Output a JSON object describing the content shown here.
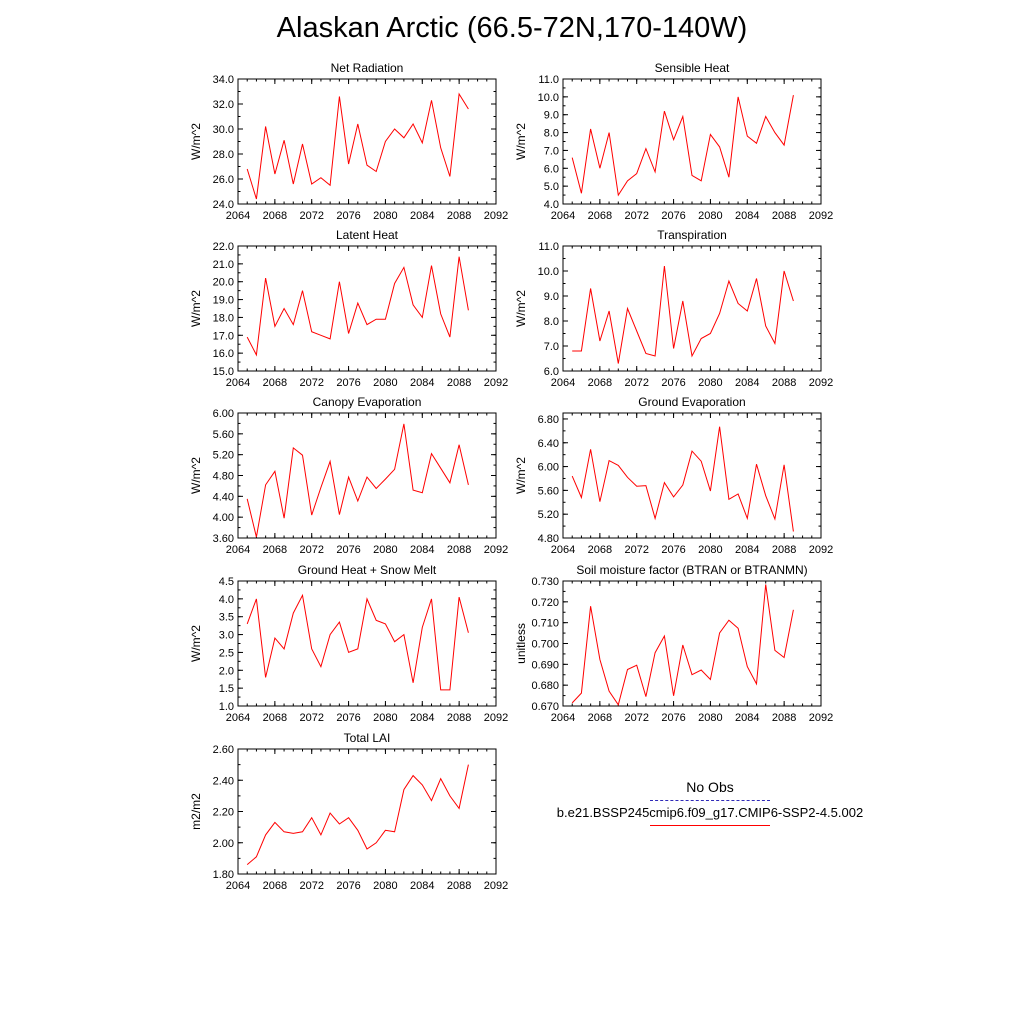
{
  "title": "Alaskan Arctic (66.5-72N,170-140W)",
  "legend": {
    "obs_label": "No Obs",
    "run_label": "b.e21.BSSP245cmip6.f09_g17.CMIP6-SSP2-4.5.002",
    "obs_color": "#2f2ab8",
    "run_color": "#ff0000"
  },
  "chart_data": [
    {
      "type": "line",
      "title": "Net Radiation",
      "ylabel": "W/m^2",
      "xlim": [
        2064,
        2092
      ],
      "ylim": [
        24,
        34
      ],
      "x_ticks": [
        "2064",
        "2068",
        "2072",
        "2076",
        "2080",
        "2084",
        "2088",
        "2092"
      ],
      "y_ticks": [
        "24.0",
        "26.0",
        "28.0",
        "30.0",
        "32.0",
        "34.0"
      ],
      "x": [
        2065,
        2066,
        2067,
        2068,
        2069,
        2070,
        2071,
        2072,
        2073,
        2074,
        2075,
        2076,
        2077,
        2078,
        2079,
        2080,
        2081,
        2082,
        2083,
        2084,
        2085,
        2086,
        2087,
        2088,
        2089
      ],
      "values": [
        26.8,
        24.4,
        30.2,
        26.4,
        29.1,
        25.6,
        28.8,
        25.6,
        26.1,
        25.5,
        32.6,
        27.2,
        30.4,
        27.1,
        26.6,
        29.0,
        30.0,
        29.3,
        30.4,
        28.9,
        32.3,
        28.5,
        26.2,
        32.8,
        31.6
      ]
    },
    {
      "type": "line",
      "title": "Sensible Heat",
      "ylabel": "W/m^2",
      "xlim": [
        2064,
        2092
      ],
      "ylim": [
        4,
        11
      ],
      "x_ticks": [
        "2064",
        "2068",
        "2072",
        "2076",
        "2080",
        "2084",
        "2088",
        "2092"
      ],
      "y_ticks": [
        "4.0",
        "5.0",
        "6.0",
        "7.0",
        "8.0",
        "9.0",
        "10.0",
        "11.0"
      ],
      "x": [
        2065,
        2066,
        2067,
        2068,
        2069,
        2070,
        2071,
        2072,
        2073,
        2074,
        2075,
        2076,
        2077,
        2078,
        2079,
        2080,
        2081,
        2082,
        2083,
        2084,
        2085,
        2086,
        2087,
        2088,
        2089
      ],
      "values": [
        6.6,
        4.6,
        8.2,
        6.0,
        8.0,
        4.5,
        5.3,
        5.7,
        7.1,
        5.8,
        9.2,
        7.6,
        8.9,
        5.6,
        5.3,
        7.9,
        7.2,
        5.5,
        10.0,
        7.8,
        7.4,
        8.9,
        8.0,
        7.3,
        10.1
      ]
    },
    {
      "type": "line",
      "title": "Latent Heat",
      "ylabel": "W/m^2",
      "xlim": [
        2064,
        2092
      ],
      "ylim": [
        15,
        22
      ],
      "x_ticks": [
        "2064",
        "2068",
        "2072",
        "2076",
        "2080",
        "2084",
        "2088",
        "2092"
      ],
      "y_ticks": [
        "15.0",
        "16.0",
        "17.0",
        "18.0",
        "19.0",
        "20.0",
        "21.0",
        "22.0"
      ],
      "x": [
        2065,
        2066,
        2067,
        2068,
        2069,
        2070,
        2071,
        2072,
        2073,
        2074,
        2075,
        2076,
        2077,
        2078,
        2079,
        2080,
        2081,
        2082,
        2083,
        2084,
        2085,
        2086,
        2087,
        2088,
        2089
      ],
      "values": [
        16.9,
        15.9,
        20.2,
        17.5,
        18.5,
        17.6,
        19.5,
        17.2,
        17.0,
        16.8,
        20.0,
        17.1,
        18.8,
        17.6,
        17.9,
        17.9,
        19.9,
        20.8,
        18.7,
        18.0,
        20.9,
        18.2,
        16.9,
        21.4,
        18.4
      ]
    },
    {
      "type": "line",
      "title": "Transpiration",
      "ylabel": "W/m^2",
      "xlim": [
        2064,
        2092
      ],
      "ylim": [
        6,
        11
      ],
      "x_ticks": [
        "2064",
        "2068",
        "2072",
        "2076",
        "2080",
        "2084",
        "2088",
        "2092"
      ],
      "y_ticks": [
        "6.0",
        "7.0",
        "8.0",
        "9.0",
        "10.0",
        "11.0"
      ],
      "x": [
        2065,
        2066,
        2067,
        2068,
        2069,
        2070,
        2071,
        2072,
        2073,
        2074,
        2075,
        2076,
        2077,
        2078,
        2079,
        2080,
        2081,
        2082,
        2083,
        2084,
        2085,
        2086,
        2087,
        2088,
        2089
      ],
      "values": [
        6.8,
        6.8,
        9.3,
        7.2,
        8.4,
        6.3,
        8.5,
        7.6,
        6.7,
        6.6,
        10.2,
        6.9,
        8.8,
        6.6,
        7.3,
        7.5,
        8.3,
        9.6,
        8.7,
        8.4,
        9.7,
        7.8,
        7.1,
        10.0,
        8.8
      ]
    },
    {
      "type": "line",
      "title": "Canopy Evaporation",
      "ylabel": "W/m^2",
      "xlim": [
        2064,
        2092
      ],
      "ylim": [
        3.6,
        6.0
      ],
      "x_ticks": [
        "2064",
        "2068",
        "2072",
        "2076",
        "2080",
        "2084",
        "2088",
        "2092"
      ],
      "y_ticks": [
        "3.60",
        "4.00",
        "4.40",
        "4.80",
        "5.20",
        "5.60",
        "6.00"
      ],
      "x": [
        2065,
        2066,
        2067,
        2068,
        2069,
        2070,
        2071,
        2072,
        2073,
        2074,
        2075,
        2076,
        2077,
        2078,
        2079,
        2080,
        2081,
        2082,
        2083,
        2084,
        2085,
        2086,
        2087,
        2088,
        2089
      ],
      "values": [
        4.35,
        3.62,
        4.62,
        4.88,
        3.98,
        5.33,
        5.19,
        4.04,
        4.57,
        5.07,
        4.05,
        4.77,
        4.31,
        4.77,
        4.55,
        4.73,
        4.92,
        5.79,
        4.52,
        4.47,
        5.22,
        4.94,
        4.66,
        5.39,
        4.62
      ]
    },
    {
      "type": "line",
      "title": "Ground Evaporation",
      "ylabel": "W/m^2",
      "xlim": [
        2064,
        2092
      ],
      "ylim": [
        4.8,
        6.9
      ],
      "x_ticks": [
        "2064",
        "2068",
        "2072",
        "2076",
        "2080",
        "2084",
        "2088",
        "2092"
      ],
      "y_ticks": [
        "4.80",
        "5.20",
        "5.60",
        "6.00",
        "6.40",
        "6.80"
      ],
      "x": [
        2065,
        2066,
        2067,
        2068,
        2069,
        2070,
        2071,
        2072,
        2073,
        2074,
        2075,
        2076,
        2077,
        2078,
        2079,
        2080,
        2081,
        2082,
        2083,
        2084,
        2085,
        2086,
        2087,
        2088,
        2089
      ],
      "values": [
        5.84,
        5.48,
        6.29,
        5.41,
        6.1,
        6.02,
        5.82,
        5.67,
        5.68,
        5.13,
        5.73,
        5.49,
        5.69,
        6.26,
        6.09,
        5.59,
        6.67,
        5.45,
        5.54,
        5.13,
        6.04,
        5.51,
        5.12,
        6.03,
        4.91
      ]
    },
    {
      "type": "line",
      "title": "Ground Heat + Snow Melt",
      "ylabel": "W/m^2",
      "xlim": [
        2064,
        2092
      ],
      "ylim": [
        1.0,
        4.5
      ],
      "x_ticks": [
        "2064",
        "2068",
        "2072",
        "2076",
        "2080",
        "2084",
        "2088",
        "2092"
      ],
      "y_ticks": [
        "1.0",
        "1.5",
        "2.0",
        "2.5",
        "3.0",
        "3.5",
        "4.0",
        "4.5"
      ],
      "x": [
        2065,
        2066,
        2067,
        2068,
        2069,
        2070,
        2071,
        2072,
        2073,
        2074,
        2075,
        2076,
        2077,
        2078,
        2079,
        2080,
        2081,
        2082,
        2083,
        2084,
        2085,
        2086,
        2087,
        2088,
        2089
      ],
      "values": [
        3.3,
        4.0,
        1.8,
        2.9,
        2.6,
        3.6,
        4.1,
        2.6,
        2.1,
        3.0,
        3.35,
        2.5,
        2.6,
        4.0,
        3.4,
        3.3,
        2.8,
        3.0,
        1.65,
        3.2,
        4.0,
        1.45,
        1.45,
        4.05,
        3.05
      ]
    },
    {
      "type": "line",
      "title": "Soil moisture factor (BTRAN or BTRANMN)",
      "ylabel": "unitless",
      "xlim": [
        2064,
        2092
      ],
      "ylim": [
        0.67,
        0.73
      ],
      "x_ticks": [
        "2064",
        "2068",
        "2072",
        "2076",
        "2080",
        "2084",
        "2088",
        "2092"
      ],
      "y_ticks": [
        "0.670",
        "0.680",
        "0.690",
        "0.700",
        "0.710",
        "0.720",
        "0.730"
      ],
      "x": [
        2065,
        2066,
        2067,
        2068,
        2069,
        2070,
        2071,
        2072,
        2073,
        2074,
        2075,
        2076,
        2077,
        2078,
        2079,
        2080,
        2081,
        2082,
        2083,
        2084,
        2085,
        2086,
        2087,
        2088,
        2089
      ],
      "values": [
        0.6715,
        0.6762,
        0.7179,
        0.6923,
        0.6771,
        0.6706,
        0.6875,
        0.6896,
        0.6745,
        0.6956,
        0.7036,
        0.6749,
        0.6993,
        0.685,
        0.6873,
        0.6827,
        0.7051,
        0.7112,
        0.7073,
        0.6889,
        0.6806,
        0.7283,
        0.6967,
        0.6933,
        0.7162
      ]
    },
    {
      "type": "line",
      "title": "Total LAI",
      "ylabel": "m2/m2",
      "xlim": [
        2064,
        2092
      ],
      "ylim": [
        1.8,
        2.6
      ],
      "x_ticks": [
        "2064",
        "2068",
        "2072",
        "2076",
        "2080",
        "2084",
        "2088",
        "2092"
      ],
      "y_ticks": [
        "1.80",
        "2.00",
        "2.20",
        "2.40",
        "2.60"
      ],
      "x": [
        2065,
        2066,
        2067,
        2068,
        2069,
        2070,
        2071,
        2072,
        2073,
        2074,
        2075,
        2076,
        2077,
        2078,
        2079,
        2080,
        2081,
        2082,
        2083,
        2084,
        2085,
        2086,
        2087,
        2088,
        2089
      ],
      "values": [
        1.86,
        1.91,
        2.05,
        2.13,
        2.07,
        2.06,
        2.07,
        2.16,
        2.05,
        2.19,
        2.12,
        2.16,
        2.08,
        1.96,
        2.0,
        2.08,
        2.07,
        2.34,
        2.43,
        2.37,
        2.27,
        2.41,
        2.3,
        2.22,
        2.5
      ]
    }
  ]
}
